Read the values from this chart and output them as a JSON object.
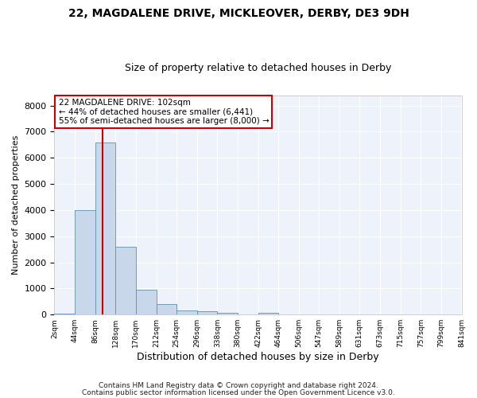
{
  "title1": "22, MAGDALENE DRIVE, MICKLEOVER, DERBY, DE3 9DH",
  "title2": "Size of property relative to detached houses in Derby",
  "xlabel": "Distribution of detached houses by size in Derby",
  "ylabel": "Number of detached properties",
  "property_size": 102,
  "property_label": "22 MAGDALENE DRIVE: 102sqm",
  "annotation_line1": "← 44% of detached houses are smaller (6,441)",
  "annotation_line2": "55% of semi-detached houses are larger (8,000) →",
  "bar_color": "#c8d8ea",
  "bar_edge_color": "#6090b0",
  "redline_color": "#cc0000",
  "annotation_box_edge_color": "#cc0000",
  "background_color": "#eef2fa",
  "grid_color": "#ffffff",
  "bin_edges": [
    2,
    44,
    86,
    128,
    170,
    212,
    254,
    296,
    338,
    380,
    422,
    464,
    506,
    547,
    589,
    631,
    673,
    715,
    757,
    799,
    841
  ],
  "bar_heights": [
    50,
    4000,
    6600,
    2600,
    950,
    400,
    150,
    120,
    80,
    0,
    80,
    0,
    0,
    0,
    0,
    0,
    0,
    0,
    0,
    0
  ],
  "ylim": [
    0,
    8400
  ],
  "yticks": [
    0,
    1000,
    2000,
    3000,
    4000,
    5000,
    6000,
    7000,
    8000
  ],
  "footer1": "Contains HM Land Registry data © Crown copyright and database right 2024.",
  "footer2": "Contains public sector information licensed under the Open Government Licence v3.0."
}
